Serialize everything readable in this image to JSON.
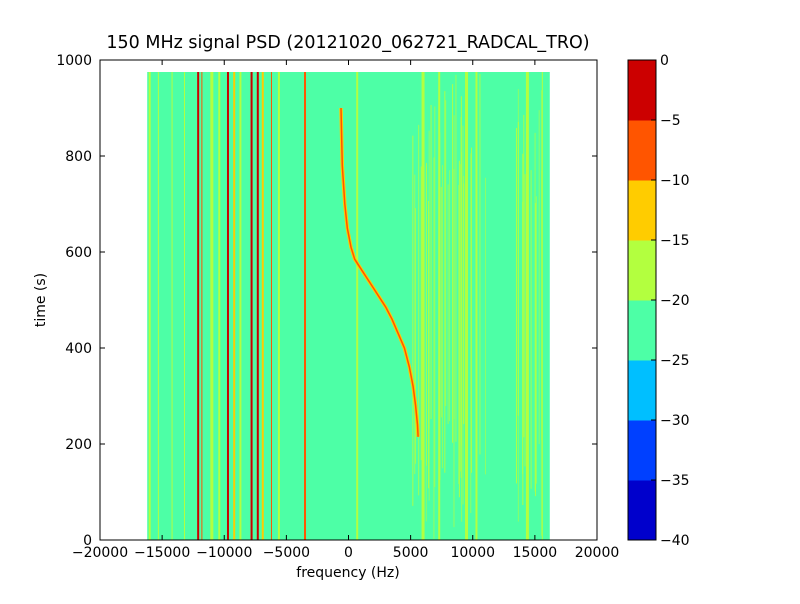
{
  "chart_data": {
    "type": "heatmap",
    "title": "150 MHz signal PSD (20121020_062721_RADCAL_TRO)",
    "xlabel": "frequency (Hz)",
    "ylabel": "time (s)",
    "xlim": [
      -20000,
      20000
    ],
    "ylim": [
      0,
      1000
    ],
    "x_ticks": [
      -20000,
      -15000,
      -10000,
      -5000,
      0,
      5000,
      10000,
      15000,
      20000
    ],
    "x_tick_labels": [
      "−20000",
      "−15000",
      "−10000",
      "−5000",
      "0",
      "5000",
      "10000",
      "15000",
      "20000"
    ],
    "y_ticks": [
      0,
      200,
      400,
      600,
      800,
      1000
    ],
    "y_tick_labels": [
      "0",
      "200",
      "400",
      "600",
      "800",
      "1000"
    ],
    "data_extent": {
      "x": [
        -16200,
        16200
      ],
      "y": [
        0,
        975
      ]
    },
    "background_level": -22.5,
    "colorbar": {
      "levels": [
        -40,
        -35,
        -30,
        -25,
        -20,
        -15,
        -10,
        -5,
        0
      ],
      "tick_labels": [
        "−40",
        "−35",
        "−30",
        "−25",
        "−20",
        "−15",
        "−10",
        "−5",
        "0"
      ],
      "colors": [
        "#0000cc",
        "#0040ff",
        "#00bfff",
        "#4dffa6",
        "#b3ff3f",
        "#ffcc00",
        "#ff5500",
        "#cc0000"
      ]
    },
    "vertical_lines": [
      {
        "freq": -16000,
        "color": "#b3ff3f",
        "width": 2
      },
      {
        "freq": -15300,
        "color": "#b3ff3f",
        "width": 1
      },
      {
        "freq": -14200,
        "color": "#b3ff3f",
        "width": 1
      },
      {
        "freq": -13200,
        "color": "#b3ff3f",
        "width": 1
      },
      {
        "freq": -12100,
        "color": "#cc0000",
        "width": 2
      },
      {
        "freq": -11800,
        "color": "#ff5500",
        "width": 1
      },
      {
        "freq": -11000,
        "color": "#b3ff3f",
        "width": 3
      },
      {
        "freq": -10400,
        "color": "#b3ff3f",
        "width": 2
      },
      {
        "freq": -9700,
        "color": "#cc0000",
        "width": 2
      },
      {
        "freq": -9200,
        "color": "#ffcc00",
        "width": 2
      },
      {
        "freq": -8700,
        "color": "#b3ff3f",
        "width": 2
      },
      {
        "freq": -7800,
        "color": "#cc0000",
        "width": 2
      },
      {
        "freq": -7300,
        "color": "#cc0000",
        "width": 2
      },
      {
        "freq": -6900,
        "color": "#ffcc00",
        "width": 2
      },
      {
        "freq": -6200,
        "color": "#ff5500",
        "width": 1
      },
      {
        "freq": -5600,
        "color": "#b3ff3f",
        "width": 2
      },
      {
        "freq": -3500,
        "color": "#ff5500",
        "width": 2
      },
      {
        "freq": 700,
        "color": "#b3ff3f",
        "width": 2
      },
      {
        "freq": 6000,
        "color": "#b3ff3f",
        "width": 3
      },
      {
        "freq": 7300,
        "color": "#b3ff3f",
        "width": 2
      },
      {
        "freq": 9500,
        "color": "#b3ff3f",
        "width": 3
      },
      {
        "freq": 10300,
        "color": "#b3ff3f",
        "width": 2
      },
      {
        "freq": 14400,
        "color": "#b3ff3f",
        "width": 3
      },
      {
        "freq": 15600,
        "color": "#b3ff3f",
        "width": 1
      }
    ],
    "noise_bands": [
      {
        "from": 4600,
        "to": 11200,
        "color": "#b3ff3f",
        "count": 40
      },
      {
        "from": 13400,
        "to": 16200,
        "color": "#b3ff3f",
        "count": 14
      }
    ],
    "sweep_trace": {
      "color": "#ff5500",
      "x": [
        5600,
        5550,
        5400,
        5200,
        4900,
        4500,
        4000,
        3500,
        3000,
        2500,
        2000,
        1500,
        1000,
        500,
        200,
        -100,
        -300,
        -500,
        -600
      ],
      "y": [
        215,
        240,
        280,
        320,
        360,
        400,
        430,
        460,
        485,
        505,
        525,
        545,
        565,
        585,
        610,
        650,
        700,
        780,
        900
      ]
    }
  }
}
